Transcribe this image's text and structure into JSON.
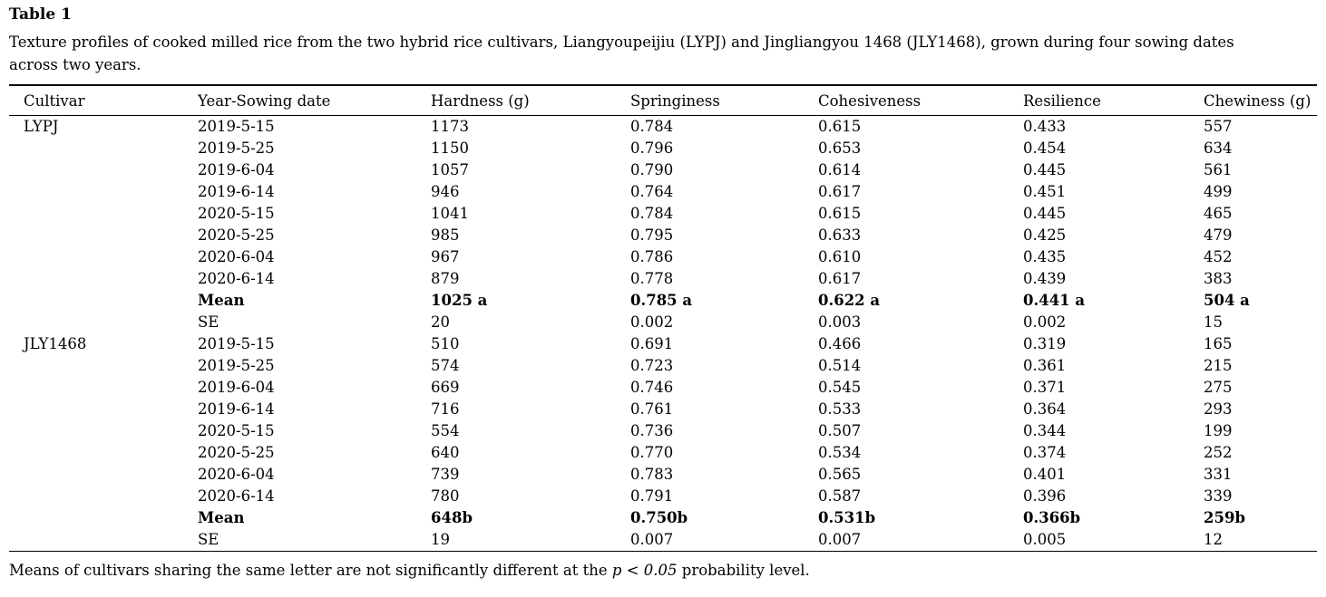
{
  "page": {
    "title": "Table 1",
    "caption_lines": [
      "Texture profiles of cooked milled rice from the two hybrid rice cultivars, Liangyoupeijiu (LYPJ) and Jingliangyou 1468 (JLY1468), grown during four sowing dates",
      "across two years."
    ],
    "footnote": {
      "before_italic": "Means of cultivars sharing the same letter are not significantly different at the ",
      "italic": "p < 0.05",
      "after_italic": " probability level."
    }
  },
  "table": {
    "columns": [
      "Cultivar",
      "Year-Sowing date",
      "Hardness (g)",
      "Springiness",
      "Cohesiveness",
      "Resilience",
      "Chewiness (g)"
    ],
    "rows": [
      {
        "cells": [
          "LYPJ",
          "2019-5-15",
          "1173",
          "0.784",
          "0.615",
          "0.433",
          "557"
        ],
        "bold": false
      },
      {
        "cells": [
          "",
          "2019-5-25",
          "1150",
          "0.796",
          "0.653",
          "0.454",
          "634"
        ],
        "bold": false
      },
      {
        "cells": [
          "",
          "2019-6-04",
          "1057",
          "0.790",
          "0.614",
          "0.445",
          "561"
        ],
        "bold": false
      },
      {
        "cells": [
          "",
          "2019-6-14",
          "946",
          "0.764",
          "0.617",
          "0.451",
          "499"
        ],
        "bold": false
      },
      {
        "cells": [
          "",
          "2020-5-15",
          "1041",
          "0.784",
          "0.615",
          "0.445",
          "465"
        ],
        "bold": false
      },
      {
        "cells": [
          "",
          "2020-5-25",
          "985",
          "0.795",
          "0.633",
          "0.425",
          "479"
        ],
        "bold": false
      },
      {
        "cells": [
          "",
          "2020-6-04",
          "967",
          "0.786",
          "0.610",
          "0.435",
          "452"
        ],
        "bold": false
      },
      {
        "cells": [
          "",
          "2020-6-14",
          "879",
          "0.778",
          "0.617",
          "0.439",
          "383"
        ],
        "bold": false
      },
      {
        "cells": [
          "",
          "Mean",
          "1025 a",
          "0.785 a",
          "0.622 a",
          "0.441 a",
          "504 a"
        ],
        "bold": true
      },
      {
        "cells": [
          "",
          "SE",
          "20",
          "0.002",
          "0.003",
          "0.002",
          "15"
        ],
        "bold": false
      },
      {
        "cells": [
          "JLY1468",
          "2019-5-15",
          "510",
          "0.691",
          "0.466",
          "0.319",
          "165"
        ],
        "bold": false
      },
      {
        "cells": [
          "",
          "2019-5-25",
          "574",
          "0.723",
          "0.514",
          "0.361",
          "215"
        ],
        "bold": false
      },
      {
        "cells": [
          "",
          "2019-6-04",
          "669",
          "0.746",
          "0.545",
          "0.371",
          "275"
        ],
        "bold": false
      },
      {
        "cells": [
          "",
          "2019-6-14",
          "716",
          "0.761",
          "0.533",
          "0.364",
          "293"
        ],
        "bold": false
      },
      {
        "cells": [
          "",
          "2020-5-15",
          "554",
          "0.736",
          "0.507",
          "0.344",
          "199"
        ],
        "bold": false
      },
      {
        "cells": [
          "",
          "2020-5-25",
          "640",
          "0.770",
          "0.534",
          "0.374",
          "252"
        ],
        "bold": false
      },
      {
        "cells": [
          "",
          "2020-6-04",
          "739",
          "0.783",
          "0.565",
          "0.401",
          "331"
        ],
        "bold": false
      },
      {
        "cells": [
          "",
          "2020-6-14",
          "780",
          "0.791",
          "0.587",
          "0.396",
          "339"
        ],
        "bold": false
      },
      {
        "cells": [
          "",
          "Mean",
          "648b",
          "0.750b",
          "0.531b",
          "0.366b",
          "259b"
        ],
        "bold": true
      },
      {
        "cells": [
          "",
          "SE",
          "19",
          "0.007",
          "0.007",
          "0.005",
          "12"
        ],
        "bold": false
      }
    ]
  },
  "colors": {
    "text": "#000000",
    "background": "#ffffff",
    "rule": "#000000"
  }
}
